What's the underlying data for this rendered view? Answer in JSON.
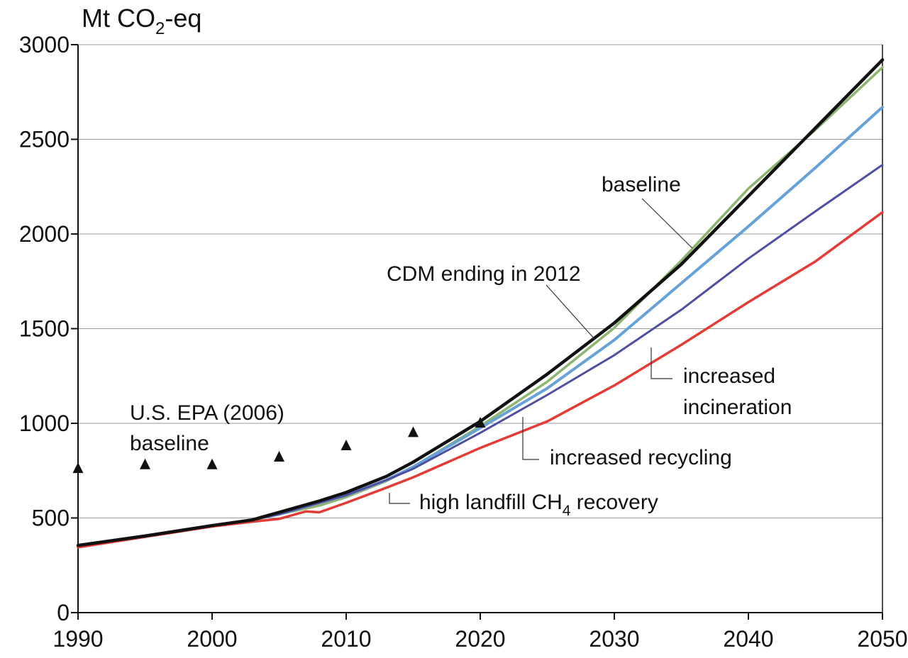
{
  "chart_data": {
    "type": "line",
    "ylabel_main": "Mt CO",
    "ylabel_sub": "2",
    "ylabel_tail": "-eq",
    "xlim": [
      1990,
      2050
    ],
    "ylim": [
      0,
      3000
    ],
    "x_ticks": [
      1990,
      2000,
      2010,
      2020,
      2030,
      2040,
      2050
    ],
    "y_ticks": [
      0,
      500,
      1000,
      1500,
      2000,
      2500,
      3000
    ],
    "grid": "horizontal",
    "series": [
      {
        "key": "cdm",
        "color": "#8db56f",
        "points": [
          [
            1990,
            355
          ],
          [
            1995,
            405
          ],
          [
            2000,
            460
          ],
          [
            2003,
            490
          ],
          [
            2005,
            520
          ],
          [
            2008,
            565
          ],
          [
            2010,
            610
          ],
          [
            2013,
            695
          ],
          [
            2015,
            770
          ],
          [
            2020,
            985
          ],
          [
            2025,
            1220
          ],
          [
            2030,
            1505
          ],
          [
            2035,
            1860
          ],
          [
            2040,
            2240
          ],
          [
            2045,
            2550
          ],
          [
            2050,
            2880
          ]
        ]
      },
      {
        "key": "incineration",
        "color": "#66a2d8",
        "points": [
          [
            1990,
            355
          ],
          [
            1995,
            405
          ],
          [
            2000,
            460
          ],
          [
            2003,
            490
          ],
          [
            2005,
            520
          ],
          [
            2008,
            580
          ],
          [
            2010,
            620
          ],
          [
            2013,
            700
          ],
          [
            2015,
            770
          ],
          [
            2020,
            975
          ],
          [
            2025,
            1185
          ],
          [
            2030,
            1440
          ],
          [
            2033,
            1620
          ],
          [
            2035,
            1740
          ],
          [
            2040,
            2040
          ],
          [
            2045,
            2350
          ],
          [
            2050,
            2670
          ]
        ]
      },
      {
        "key": "recycling",
        "color": "#4f4fa1",
        "points": [
          [
            1990,
            355
          ],
          [
            1995,
            405
          ],
          [
            2000,
            460
          ],
          [
            2003,
            490
          ],
          [
            2005,
            520
          ],
          [
            2008,
            580
          ],
          [
            2010,
            620
          ],
          [
            2013,
            700
          ],
          [
            2015,
            760
          ],
          [
            2020,
            950
          ],
          [
            2025,
            1150
          ],
          [
            2030,
            1360
          ],
          [
            2035,
            1600
          ],
          [
            2040,
            1870
          ],
          [
            2045,
            2120
          ],
          [
            2050,
            2365
          ]
        ]
      },
      {
        "key": "landfill",
        "color": "#e43b36",
        "points": [
          [
            1990,
            345
          ],
          [
            1995,
            400
          ],
          [
            2000,
            455
          ],
          [
            2003,
            480
          ],
          [
            2005,
            495
          ],
          [
            2007,
            535
          ],
          [
            2008,
            530
          ],
          [
            2010,
            580
          ],
          [
            2013,
            660
          ],
          [
            2015,
            715
          ],
          [
            2020,
            870
          ],
          [
            2025,
            1010
          ],
          [
            2030,
            1200
          ],
          [
            2035,
            1415
          ],
          [
            2040,
            1640
          ],
          [
            2045,
            1855
          ],
          [
            2050,
            2115
          ]
        ]
      },
      {
        "key": "baseline",
        "color": "#111111",
        "points": [
          [
            1990,
            355
          ],
          [
            1995,
            405
          ],
          [
            2000,
            460
          ],
          [
            2003,
            490
          ],
          [
            2005,
            530
          ],
          [
            2008,
            590
          ],
          [
            2010,
            635
          ],
          [
            2013,
            720
          ],
          [
            2015,
            795
          ],
          [
            2020,
            1010
          ],
          [
            2025,
            1260
          ],
          [
            2030,
            1530
          ],
          [
            2035,
            1840
          ],
          [
            2040,
            2200
          ],
          [
            2045,
            2560
          ],
          [
            2050,
            2920
          ]
        ]
      }
    ],
    "epa_points": [
      [
        1990,
        760
      ],
      [
        1995,
        780
      ],
      [
        2000,
        780
      ],
      [
        2005,
        820
      ],
      [
        2010,
        880
      ],
      [
        2015,
        950
      ],
      [
        2020,
        1000
      ]
    ],
    "labels": {
      "baseline": "baseline",
      "cdm": "CDM ending in 2012",
      "incineration_1": "increased",
      "incineration_2": "incineration",
      "recycling": "increased recycling",
      "landfill_main": "high landfill CH",
      "landfill_sub": "4",
      "landfill_tail": " recovery",
      "epa_1": "U.S. EPA (2006)",
      "epa_2": "baseline"
    }
  }
}
